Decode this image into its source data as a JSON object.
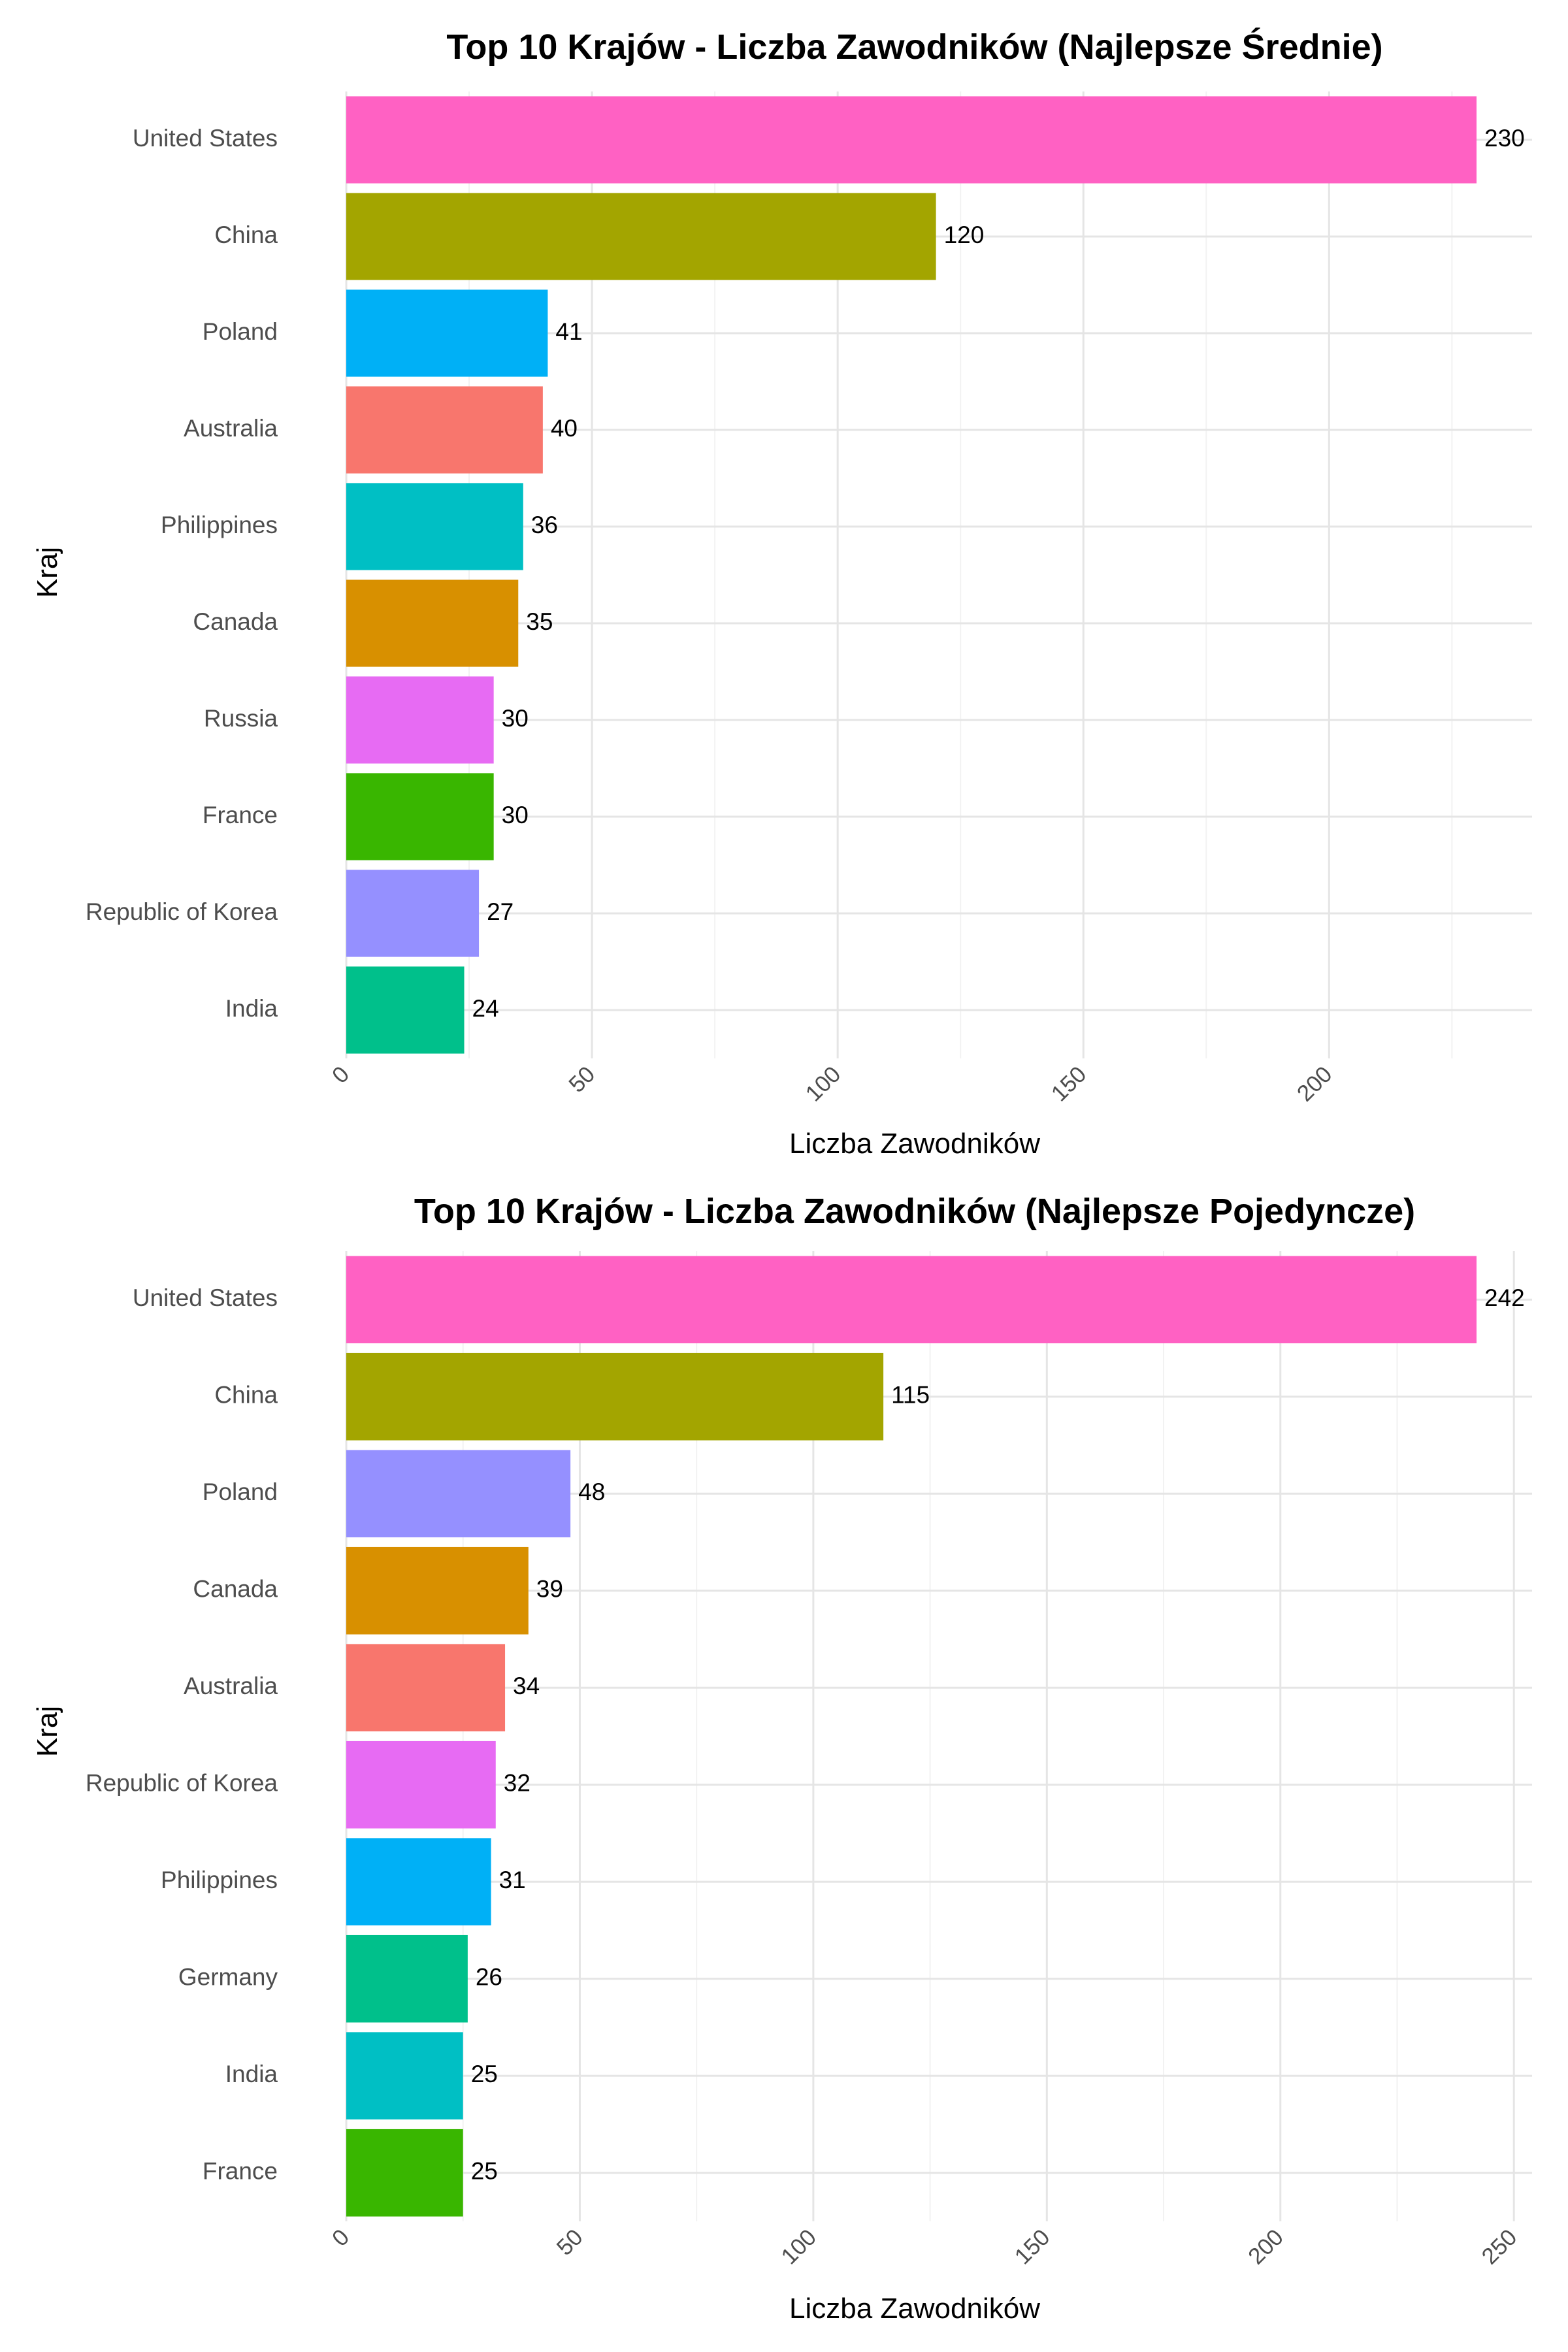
{
  "chart_data": [
    {
      "type": "bar",
      "orientation": "horizontal",
      "title": "Top 10 Krajów - Liczba Zawodników (Najlepsze Średnie)",
      "xlabel": "Liczba Zawodników",
      "ylabel": "Kraj",
      "categories": [
        "United States",
        "China",
        "Poland",
        "Australia",
        "Philippines",
        "Canada",
        "Russia",
        "France",
        "Republic of Korea",
        "India"
      ],
      "values": [
        230,
        120,
        41,
        40,
        36,
        35,
        30,
        30,
        27,
        24
      ],
      "bar_colors": [
        "#FF61C3",
        "#A3A500",
        "#00B0F6",
        "#F8766D",
        "#00BFC4",
        "#D89000",
        "#E76BF3",
        "#39B600",
        "#9590FF",
        "#00C08B"
      ],
      "ticks": [
        0,
        50,
        100,
        150,
        200
      ],
      "xlim": [
        0,
        241.5
      ],
      "grid": true,
      "legend": "none"
    },
    {
      "type": "bar",
      "orientation": "horizontal",
      "title": "Top 10 Krajów - Liczba Zawodników (Najlepsze Pojedyncze)",
      "xlabel": "Liczba Zawodników",
      "ylabel": "Kraj",
      "categories": [
        "United States",
        "China",
        "Poland",
        "Canada",
        "Australia",
        "Republic of Korea",
        "Philippines",
        "Germany",
        "India",
        "France"
      ],
      "values": [
        242,
        115,
        48,
        39,
        34,
        32,
        31,
        26,
        25,
        25
      ],
      "bar_colors": [
        "#FF61C3",
        "#A3A500",
        "#9590FF",
        "#D89000",
        "#F8766D",
        "#E76BF3",
        "#00B0F6",
        "#00C08B",
        "#00BFC4",
        "#39B600"
      ],
      "ticks": [
        0,
        50,
        100,
        150,
        200,
        250
      ],
      "xlim": [
        0,
        254.1
      ],
      "grid": true,
      "legend": "none"
    }
  ]
}
